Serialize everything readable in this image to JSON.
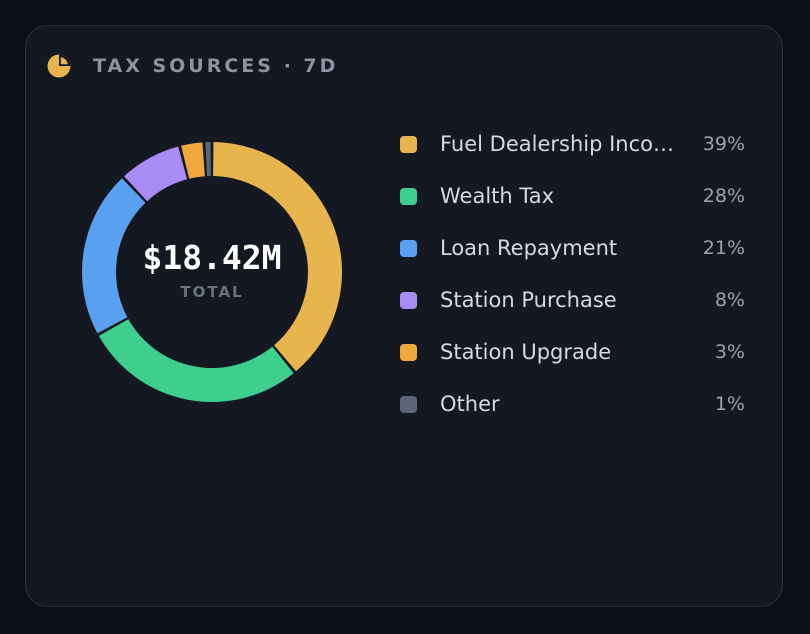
{
  "panel": {
    "title": "TAX SOURCES · 7D",
    "icon": "pie-chart-icon",
    "icon_color": "#e8b54d"
  },
  "chart_data": {
    "type": "pie",
    "categories": [
      "Fuel Dealership Income",
      "Wealth Tax",
      "Loan Repayment",
      "Station Purchase",
      "Station Upgrade",
      "Other"
    ],
    "labels_display": [
      "Fuel Dealership Inco…",
      "Wealth Tax",
      "Loan Repayment",
      "Station Purchase",
      "Station Upgrade",
      "Other"
    ],
    "values": [
      39,
      28,
      21,
      8,
      3,
      1
    ],
    "value_labels": [
      "39%",
      "28%",
      "21%",
      "8%",
      "3%",
      "1%"
    ],
    "colors": [
      "#e8b54d",
      "#3ecf8e",
      "#5aa0f0",
      "#a98bf5",
      "#f0a83c",
      "#5d6677"
    ],
    "center_value": "$18.42M",
    "center_label": "TOTAL",
    "legend_position": "right"
  },
  "colors": {
    "background": "#0b0f18",
    "card": "#131821",
    "card_border": "#2a303b"
  }
}
